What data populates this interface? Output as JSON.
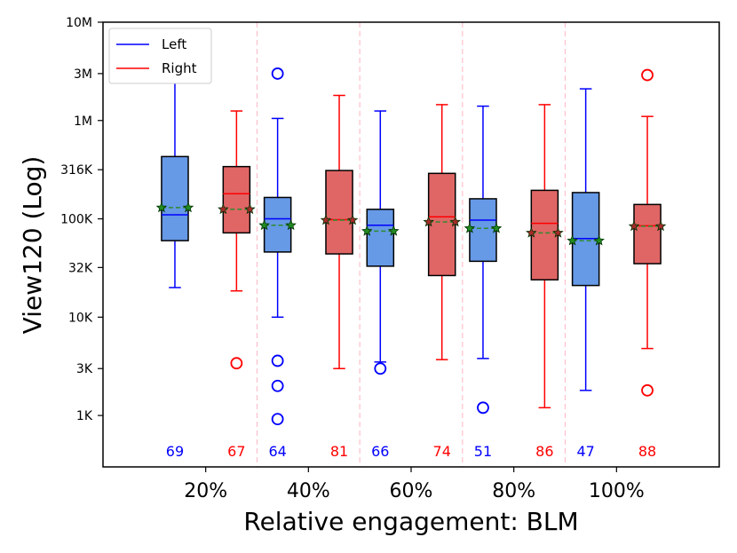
{
  "chart_data": {
    "type": "boxplot",
    "xlabel": "Relative engagement: BLM",
    "ylabel": "View120 (Log)",
    "yscale": "log",
    "ylim": [
      300,
      10000000
    ],
    "yticks": [
      1000,
      3000,
      10000,
      32000,
      100000,
      316000,
      1000000,
      3000000,
      10000000
    ],
    "ytick_labels": [
      "1K",
      "3K",
      "10K",
      "32K",
      "100K",
      "316K",
      "1M",
      "3M",
      "10M"
    ],
    "categories": [
      "20%",
      "40%",
      "60%",
      "80%",
      "100%"
    ],
    "legend": [
      {
        "name": "Left",
        "color": "#0000ff"
      },
      {
        "name": "Right",
        "color": "#ff0000"
      }
    ],
    "mean_line_color": "#2e8b2e",
    "separator_color": "#ffc0cb",
    "series": [
      {
        "name": "Left",
        "box_fill": "#6699e6",
        "line_color": "#0000ff",
        "counts": [
          69,
          64,
          66,
          51,
          47
        ],
        "whisker_low": [
          20000,
          10000,
          3500,
          3800,
          1800
        ],
        "q1": [
          60000,
          46000,
          33000,
          37000,
          21000
        ],
        "median": [
          110000,
          100000,
          86000,
          97000,
          63000
        ],
        "q3": [
          430000,
          165000,
          125000,
          160000,
          185000
        ],
        "whisker_high": [
          3200000,
          1050000,
          1250000,
          1400000,
          2100000
        ],
        "mean": [
          130000,
          86000,
          75000,
          80000,
          60000
        ],
        "outliers": [
          [],
          [
            3000000,
            3600,
            2000,
            920
          ],
          [
            3000
          ],
          [
            1200
          ],
          []
        ]
      },
      {
        "name": "Right",
        "box_fill": "#e06666",
        "line_color": "#ff0000",
        "counts": [
          67,
          81,
          74,
          86,
          88
        ],
        "whisker_low": [
          18500,
          3000,
          3700,
          1200,
          4800
        ],
        "q1": [
          72000,
          44000,
          26500,
          24000,
          35000
        ],
        "median": [
          180000,
          98000,
          105000,
          90000,
          85000
        ],
        "q3": [
          340000,
          310000,
          290000,
          195000,
          140000
        ],
        "whisker_high": [
          1250000,
          1800000,
          1450000,
          1450000,
          1100000
        ],
        "mean": [
          125000,
          97000,
          93000,
          72000,
          84000
        ],
        "outliers": [
          [
            3400
          ],
          [],
          [],
          [],
          [
            2900000,
            1800
          ]
        ]
      }
    ]
  }
}
